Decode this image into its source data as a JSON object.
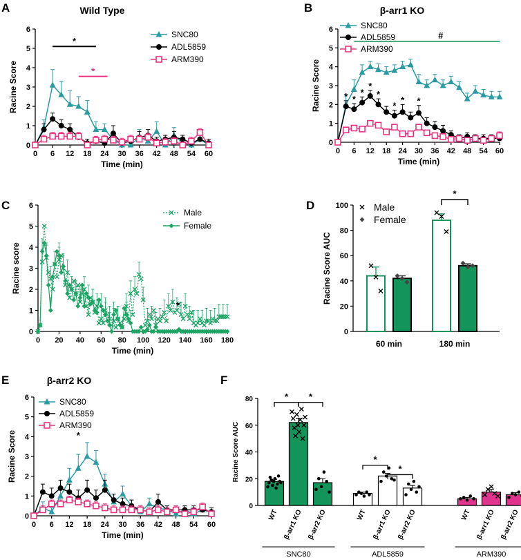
{
  "colors": {
    "snc80": "#2a9aa3",
    "adl5859": "#000000",
    "arm390": "#e8337f",
    "male": "#1ea566",
    "female": "#1ea566",
    "fkgreen": "#12945a",
    "arm_pink": "#e0338d"
  },
  "chart_data": [
    {
      "panel": "A",
      "type": "line",
      "title": "Wild Type",
      "xlabel": "Time (min)",
      "ylabel": "Racine Score",
      "xlim": [
        0,
        60
      ],
      "ylim": [
        0,
        6
      ],
      "xticks": [
        0,
        6,
        12,
        18,
        24,
        30,
        36,
        42,
        48,
        54,
        60
      ],
      "yticks": [
        0,
        1,
        2,
        3,
        4,
        5,
        6
      ],
      "x": [
        0,
        3,
        6,
        9,
        12,
        15,
        18,
        21,
        24,
        27,
        30,
        33,
        36,
        39,
        42,
        45,
        48,
        51,
        54,
        57,
        60
      ],
      "series": [
        {
          "name": "SNC80",
          "marker": "triangle",
          "values": [
            0,
            0.9,
            3.1,
            2.6,
            2.1,
            2.0,
            1.7,
            0.8,
            0.8,
            0.3,
            0,
            0,
            0.4,
            0.2,
            0.7,
            0,
            0.5,
            0.1,
            0,
            0.3,
            0
          ],
          "errors": [
            0,
            0.4,
            0.8,
            0.7,
            0.7,
            0.5,
            0.6,
            0.4,
            0.3,
            0.3,
            0,
            0,
            0.4,
            0.2,
            0.5,
            0,
            0.4,
            0.2,
            0,
            0.3,
            0
          ]
        },
        {
          "name": "ADL5859",
          "marker": "circle",
          "values": [
            0,
            0.8,
            1.35,
            1.0,
            0.8,
            0.4,
            0.1,
            0.2,
            0.1,
            0.6,
            0.1,
            0.2,
            0.4,
            0.5,
            0.2,
            0.3,
            0.4,
            0.3,
            0.1,
            0.3,
            0.1
          ],
          "errors": [
            0,
            0.3,
            0.3,
            0.3,
            0.3,
            0.2,
            0.2,
            0.2,
            0.2,
            0.4,
            0.2,
            0.2,
            0.3,
            0.3,
            0.2,
            0.2,
            0.3,
            0.2,
            0.2,
            0.2,
            0.2
          ]
        },
        {
          "name": "ARM390",
          "marker": "square",
          "values": [
            0,
            0.3,
            0.45,
            0.45,
            0.45,
            0.45,
            0,
            0.25,
            0.3,
            0.25,
            0.15,
            0.3,
            0.3,
            0.4,
            0.1,
            0.15,
            0.2,
            0,
            0.2,
            0.65,
            0
          ],
          "errors": [
            0,
            0.2,
            0.2,
            0.2,
            0.2,
            0.2,
            0.1,
            0.2,
            0.2,
            0.2,
            0.2,
            0.2,
            0.2,
            0.2,
            0.2,
            0.2,
            0.2,
            0.1,
            0.2,
            0.2,
            0.1
          ]
        }
      ],
      "annotations": [
        {
          "text": "*",
          "color": "black",
          "from": 6,
          "to": 21,
          "y": 5.1
        },
        {
          "text": "*",
          "color": "pink",
          "from": 15,
          "to": 25,
          "y": 3.55
        }
      ],
      "legend": "top-right"
    },
    {
      "panel": "B",
      "type": "line",
      "title": "β-arr1 KO",
      "xlabel": "Time  (min)",
      "ylabel": "Racine Score",
      "xlim": [
        0,
        60
      ],
      "ylim": [
        0,
        6
      ],
      "xticks": [
        0,
        6,
        12,
        18,
        24,
        30,
        36,
        42,
        48,
        54,
        60
      ],
      "yticks": [
        0,
        1,
        2,
        3,
        4,
        5,
        6
      ],
      "x": [
        0,
        3,
        6,
        9,
        12,
        15,
        18,
        21,
        24,
        27,
        30,
        33,
        36,
        39,
        42,
        45,
        48,
        51,
        54,
        57,
        60
      ],
      "series": [
        {
          "name": "SNC80",
          "marker": "triangle",
          "values": [
            0,
            2.0,
            2.8,
            3.7,
            4.0,
            3.85,
            3.7,
            3.8,
            4.0,
            4.1,
            3.2,
            3.0,
            3.3,
            3.0,
            3.2,
            2.9,
            2.3,
            2.7,
            2.5,
            2.4,
            2.4
          ],
          "errors": [
            0,
            0.5,
            0.5,
            0.4,
            0.3,
            0.3,
            0.3,
            0.3,
            0.3,
            0.3,
            0.4,
            0.3,
            0.3,
            0.3,
            0.3,
            0.3,
            0.3,
            0.3,
            0.3,
            0.3,
            0.3
          ]
        },
        {
          "name": "ADL5859",
          "marker": "circle",
          "values": [
            0,
            1.9,
            1.75,
            2.1,
            2.45,
            2.0,
            1.6,
            1.4,
            1.6,
            1.3,
            1.55,
            1.0,
            0.8,
            0.6,
            0.4,
            0.2,
            0.3,
            0.2,
            0.2,
            0.2,
            0.2
          ],
          "errors": [
            0,
            0.3,
            0.3,
            0.3,
            0.3,
            0.3,
            0.3,
            0.3,
            0.4,
            0.3,
            0.4,
            0.3,
            0.3,
            0.3,
            0.2,
            0.2,
            0.2,
            0.2,
            0.2,
            0.2,
            0.2
          ]
        },
        {
          "name": "ARM390",
          "marker": "square",
          "values": [
            0,
            0.65,
            0.75,
            0.7,
            1.0,
            0.9,
            0.55,
            0.8,
            0.45,
            0.45,
            0.8,
            0.5,
            0.35,
            0.3,
            0.15,
            0.2,
            0.1,
            0.2,
            0.1,
            0.2,
            0.35
          ],
          "errors": [
            0,
            0.15,
            0.15,
            0.15,
            0.15,
            0.15,
            0.15,
            0.15,
            0.15,
            0.15,
            0.15,
            0.15,
            0.15,
            0.15,
            0.1,
            0.1,
            0.1,
            0.1,
            0.1,
            0.1,
            0.2
          ]
        }
      ],
      "annotations": [
        {
          "text": "#",
          "from": 6,
          "to": 60,
          "y": 5.35
        },
        {
          "text": "*",
          "at": [
            3,
            6,
            9,
            12,
            15,
            21,
            24,
            30
          ]
        }
      ],
      "legend": "top-left"
    },
    {
      "panel": "C",
      "type": "line",
      "xlabel": "Time (min)",
      "ylabel": "Racine score",
      "xlim": [
        0,
        180
      ],
      "ylim": [
        0,
        6
      ],
      "xticks": [
        0,
        20,
        40,
        60,
        80,
        100,
        120,
        140,
        160,
        180
      ],
      "yticks": [
        0,
        1,
        2,
        3,
        4,
        5,
        6
      ],
      "x_step": 2,
      "series": [
        {
          "name": "Male",
          "marker": "x",
          "line": "dotted",
          "values": [
            0,
            0.3,
            3.3,
            5.0,
            3.5,
            2.8,
            2.5,
            2.0,
            3.2,
            2.6,
            3.4,
            3.6,
            3.0,
            2.2,
            2.8,
            1.6,
            2.0,
            2.4,
            1.8,
            2.2,
            1.4,
            1.8,
            2.0,
            1.2,
            0.8,
            1.6,
            1.4,
            0.9,
            1.2,
            0.4,
            0.6,
            0.4,
            1.0,
            0.8,
            0.6,
            0.3,
            0.5,
            0.2,
            0.6,
            0.4,
            0.2,
            0.6,
            1.2,
            0.5,
            1.8,
            0.8,
            2.0,
            1.8,
            2.7,
            2.5,
            1.5,
            0.3,
            0.5,
            0.8,
            0.6,
            1.0,
            0.3,
            0.6,
            0.5,
            0.7,
            0.9,
            0.5,
            1.2,
            1.0,
            1.4,
            0.9,
            1.0,
            1.3,
            0.8,
            0.6,
            1.2,
            0.8,
            0.6,
            0.9,
            0.4,
            0.3,
            0.4,
            0.6,
            0.4,
            0.3,
            0.5,
            0.5,
            0.4,
            0.6,
            0.5,
            0.5,
            0.7,
            0.7,
            0.7,
            0.7,
            0.7
          ]
        },
        {
          "name": "Female",
          "marker": "diamond",
          "line": "solid",
          "values": [
            0,
            0.3,
            3.8,
            4.2,
            3.6,
            2.2,
            1.0,
            2.6,
            3.2,
            3.8,
            3.6,
            2.8,
            3.1,
            2.4,
            1.8,
            2.2,
            2.0,
            1.5,
            1.8,
            1.2,
            1.6,
            2.2,
            1.2,
            1.8,
            1.6,
            1.3,
            1.4,
            1.0,
            0.9,
            1.5,
            1.2,
            1.0,
            0.8,
            0.5,
            0.3,
            0,
            0.8,
            1.0,
            0.6,
            0.3,
            0.2,
            1.1,
            0.8,
            0.6,
            0.4,
            0,
            0,
            0,
            0,
            0.2,
            0,
            0,
            0.1,
            0.3,
            0,
            0,
            0.2,
            0,
            0,
            0,
            0,
            0,
            0,
            0,
            0,
            0,
            0,
            0.1,
            0,
            0,
            0,
            0,
            0,
            0,
            0,
            0,
            0,
            0,
            0,
            0,
            0,
            0,
            0,
            0,
            0,
            0,
            0,
            0,
            0,
            0,
            0
          ]
        }
      ],
      "annotations": [
        {
          "text": "*",
          "x": 133,
          "y": 1.2
        }
      ],
      "legend": "top-right"
    },
    {
      "panel": "D",
      "type": "bar",
      "xlabel": "",
      "ylabel": "Racine Score AUC",
      "ylim": [
        0,
        100
      ],
      "yticks": [
        0,
        20,
        40,
        60,
        80,
        100
      ],
      "categories": [
        "60 min",
        "180 min"
      ],
      "series": [
        {
          "name": "Male",
          "style": "open",
          "values": [
            44,
            88
          ],
          "errors": [
            7,
            5
          ],
          "points": [
            [
              52,
              43,
              32
            ],
            [
              94,
              91,
              79
            ]
          ]
        },
        {
          "name": "Female",
          "style": "filled",
          "values": [
            42,
            52
          ],
          "errors": [
            2,
            1.5
          ],
          "points": [
            [
              44,
              42,
              39
            ],
            [
              54,
              51,
              52
            ]
          ]
        }
      ],
      "annotations": [
        {
          "text": "*",
          "category": "180 min"
        }
      ],
      "legend": "top-left"
    },
    {
      "panel": "E",
      "type": "line",
      "title": "β-arr2 KO",
      "xlabel": "Time (min)",
      "ylabel": "Racine Score",
      "xlim": [
        0,
        60
      ],
      "ylim": [
        0,
        6
      ],
      "xticks": [
        0,
        6,
        12,
        18,
        24,
        30,
        36,
        42,
        48,
        54,
        60
      ],
      "yticks": [
        0,
        1,
        2,
        3,
        4,
        5,
        6
      ],
      "x": [
        0,
        3,
        6,
        9,
        12,
        15,
        18,
        21,
        24,
        27,
        30,
        33,
        36,
        39,
        42,
        45,
        48,
        51,
        54,
        57,
        60
      ],
      "series": [
        {
          "name": "SNC80",
          "marker": "triangle",
          "values": [
            0,
            0.4,
            0.2,
            1.0,
            1.8,
            2.4,
            3.0,
            2.7,
            1.6,
            0.7,
            1.1,
            0.5,
            0.2,
            0.6,
            0.4,
            0.3,
            0.1,
            0.3,
            0.1,
            0.3,
            0.2
          ],
          "errors": [
            0,
            0.3,
            0.2,
            0.4,
            0.6,
            0.7,
            0.7,
            0.6,
            0.5,
            0.4,
            0.4,
            0.3,
            0.2,
            0.3,
            0.3,
            0.2,
            0.2,
            0.2,
            0.2,
            0.2,
            0.2
          ]
        },
        {
          "name": "ADL5859",
          "marker": "circle",
          "values": [
            0,
            1.2,
            1.0,
            1.4,
            1.2,
            0.9,
            1.3,
            0.9,
            1.3,
            0.8,
            0.6,
            0.5,
            0.3,
            0.2,
            0.7,
            0.3,
            0.3,
            0.3,
            0.3,
            0.3,
            0.2
          ],
          "errors": [
            0,
            0.4,
            0.4,
            0.4,
            0.4,
            0.4,
            0.5,
            0.4,
            0.5,
            0.3,
            0.3,
            0.3,
            0.2,
            0.2,
            0.4,
            0.2,
            0.2,
            0.2,
            0.2,
            0.2,
            0.2
          ]
        },
        {
          "name": "ARM390",
          "marker": "square",
          "values": [
            0,
            0.3,
            0.6,
            0.6,
            0.8,
            0.7,
            0.6,
            0.5,
            0.4,
            0.3,
            0.3,
            0.3,
            0.3,
            0.2,
            0.3,
            0.2,
            0.3,
            0.1,
            0.2,
            0.45,
            0.1
          ],
          "errors": [
            0,
            0.2,
            0.2,
            0.2,
            0.2,
            0.2,
            0.2,
            0.2,
            0.2,
            0.2,
            0.2,
            0.2,
            0.2,
            0.2,
            0.2,
            0.2,
            0.2,
            0.1,
            0.2,
            0.2,
            0.1
          ]
        }
      ],
      "annotations": [
        {
          "text": "*",
          "x": 15,
          "y": 3.9
        }
      ],
      "legend": "top-left"
    },
    {
      "panel": "F",
      "type": "bar",
      "ylabel": "Racine Score AUC",
      "ylim": [
        0,
        80
      ],
      "yticks": [
        0,
        20,
        40,
        60,
        80
      ],
      "groups": [
        "SNC80",
        "ADL5859",
        "ARM390"
      ],
      "categories": [
        "WT",
        "β-arr1 KO",
        "β-arr2 KO"
      ],
      "series": [
        {
          "name": "SNC80",
          "style": "filled-green",
          "values": [
            18,
            62,
            17
          ],
          "errors": [
            1.5,
            3,
            3
          ],
          "points": [
            [
              14,
              17,
              21,
              19,
              15,
              18,
              20,
              13,
              16,
              22,
              18,
              17
            ],
            [
              70,
              65,
              58,
              52,
              68,
              60,
              55,
              64,
              72,
              50,
              60,
              66
            ],
            [
              12,
              20,
              14,
              25,
              18,
              10
            ]
          ]
        },
        {
          "name": "ADL5859",
          "style": "open",
          "values": [
            9,
            22,
            13
          ],
          "errors": [
            1,
            2,
            2
          ],
          "points": [
            [
              8,
              10,
              9,
              7,
              10,
              8
            ],
            [
              18,
              25,
              22,
              28,
              20,
              19
            ],
            [
              8,
              16,
              12,
              18,
              10,
              14
            ]
          ]
        },
        {
          "name": "ARM390",
          "style": "filled-pink",
          "values": [
            5,
            10,
            8
          ],
          "errors": [
            1,
            2,
            1.5
          ],
          "points": [
            [
              5,
              6,
              4,
              7,
              5
            ],
            [
              8,
              12,
              14,
              9,
              7
            ],
            [
              6,
              9,
              8,
              10,
              7
            ]
          ]
        }
      ],
      "annotations": [
        {
          "text": "*",
          "pairs": [
            [
              "SNC80 WT",
              "SNC80 β-arr1 KO"
            ],
            [
              "SNC80 β-arr1 KO",
              "SNC80 β-arr2 KO"
            ],
            [
              "ADL5859 WT",
              "ADL5859 β-arr1 KO"
            ],
            [
              "ADL5859 β-arr1 KO",
              "ADL5859 β-arr2 KO"
            ]
          ]
        }
      ]
    }
  ]
}
